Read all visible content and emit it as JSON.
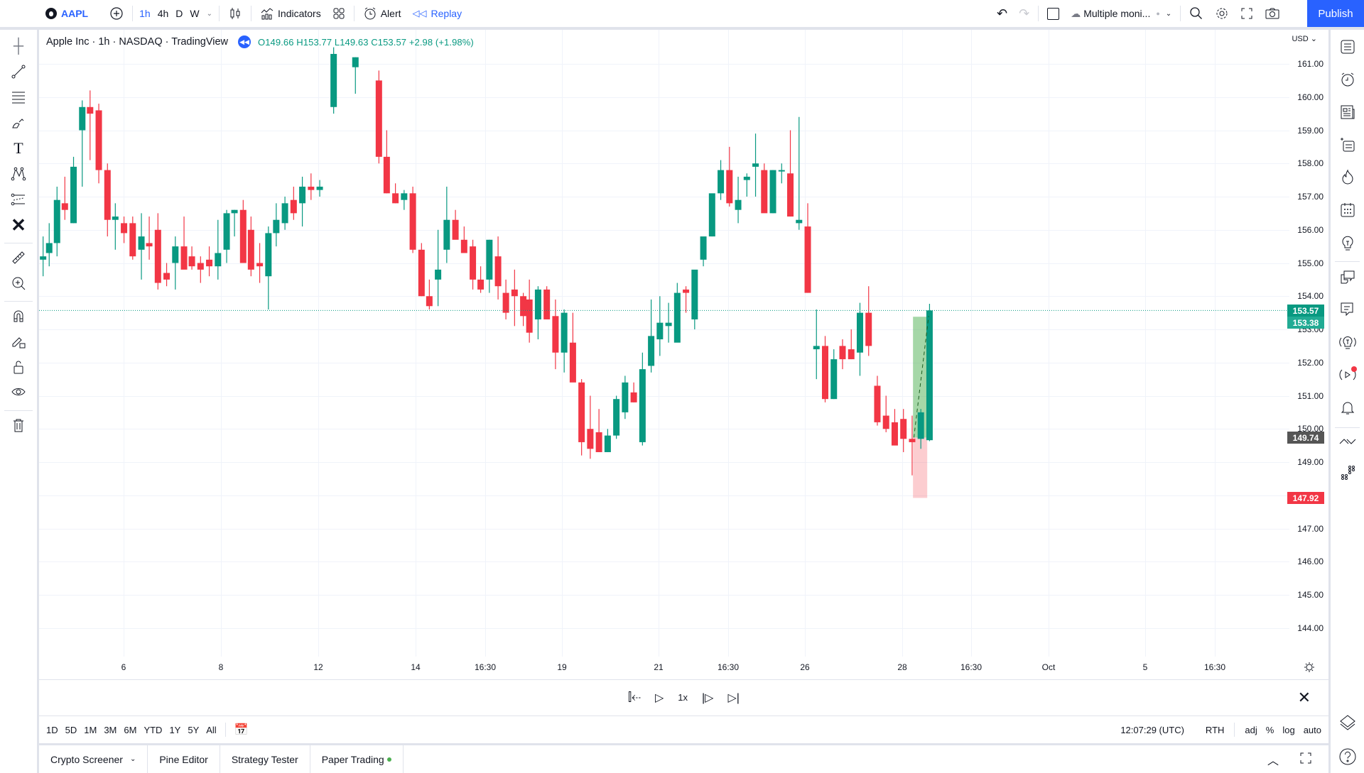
{
  "topbar": {
    "symbol": "AAPL",
    "intervals": [
      "1h",
      "4h",
      "D",
      "W"
    ],
    "active_interval": "1h",
    "indicators_label": "Indicators",
    "alert_label": "Alert",
    "replay_label": "Replay",
    "layout_label": "Multiple moni...",
    "publish_label": "Publish"
  },
  "legend": {
    "title": "Apple Inc · 1h · NASDAQ · TradingView",
    "ohlc": "O149.66 H153.77 L149.63 C153.57 +2.98 (+1.98%)"
  },
  "price_axis": {
    "currency": "USD",
    "ticks": [
      "161.00",
      "160.00",
      "159.00",
      "158.00",
      "157.00",
      "156.00",
      "155.00",
      "154.00",
      "153.00",
      "152.00",
      "151.00",
      "150.00",
      "149.00",
      "147.00",
      "146.00",
      "145.00",
      "144.00"
    ],
    "tags": [
      {
        "value": "153.57",
        "color": "#089981"
      },
      {
        "value": "153.38",
        "color": "#22ab94"
      },
      {
        "value": "149.74",
        "color": "#555555"
      },
      {
        "value": "147.92",
        "color": "#f23645"
      }
    ]
  },
  "time_axis": {
    "labels": [
      "6",
      "8",
      "12",
      "14",
      "16:30",
      "19",
      "21",
      "16:30",
      "26",
      "28",
      "16:30",
      "Oct",
      "5",
      "16:30"
    ]
  },
  "replay_bar": {
    "speed": "1x"
  },
  "bottom_toolbar": {
    "ranges": [
      "1D",
      "5D",
      "1M",
      "3M",
      "6M",
      "YTD",
      "1Y",
      "5Y",
      "All"
    ],
    "clock": "12:07:29 (UTC)",
    "session": "RTH",
    "options": [
      "adj",
      "%",
      "log",
      "auto"
    ]
  },
  "tabs": [
    "Crypto Screener",
    "Pine Editor",
    "Strategy Tester",
    "Paper Trading"
  ],
  "colors": {
    "up": "#089981",
    "down": "#f23645",
    "accent": "#2962ff"
  },
  "chart_data": {
    "type": "candlestick",
    "title": "Apple Inc · 1h · NASDAQ",
    "ylim": [
      143.5,
      161.5
    ],
    "last_price": 153.57
  }
}
